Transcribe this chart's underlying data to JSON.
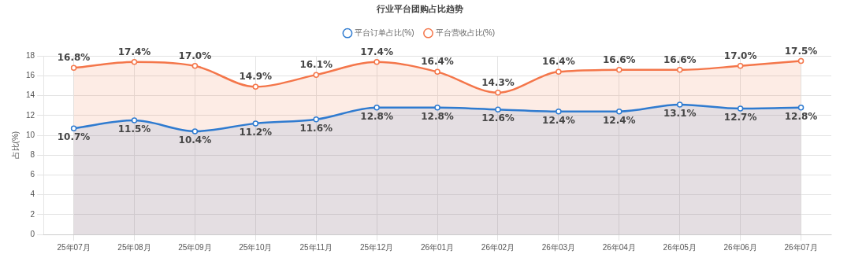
{
  "chart_data": {
    "type": "area",
    "title": "行业平台团购占比趋势",
    "ylabel": "占比(%)",
    "categories": [
      "25年07月",
      "25年08月",
      "25年09月",
      "25年10月",
      "25年11月",
      "25年12月",
      "26年01月",
      "26年02月",
      "26年03月",
      "26年04月",
      "26年05月",
      "26年06月",
      "26年07月"
    ],
    "series": [
      {
        "name": "平台订单占比(%)",
        "color": "#2f7bd0",
        "values": [
          10.7,
          11.5,
          10.4,
          11.2,
          11.6,
          12.8,
          12.8,
          12.6,
          12.4,
          12.4,
          13.1,
          12.7,
          12.8
        ],
        "value_labels": [
          "10.7%",
          "11.5%",
          "10.4%",
          "11.2%",
          "11.6%",
          "12.8%",
          "12.8%",
          "12.6%",
          "12.4%",
          "12.4%",
          "13.1%",
          "12.7%",
          "12.8%"
        ]
      },
      {
        "name": "平台营收占比(%)",
        "color": "#f4764a",
        "values": [
          16.8,
          17.4,
          17.0,
          14.9,
          16.1,
          17.4,
          16.4,
          14.3,
          16.4,
          16.6,
          16.6,
          17.0,
          17.5
        ],
        "value_labels": [
          "16.8%",
          "17.4%",
          "17.0%",
          "14.9%",
          "16.1%",
          "17.4%",
          "16.4%",
          "14.3%",
          "16.4%",
          "16.6%",
          "16.6%",
          "17.0%",
          "17.5%"
        ]
      }
    ],
    "ylim": [
      0,
      18
    ],
    "yticks": [
      0,
      2,
      4,
      6,
      8,
      10,
      12,
      14,
      16,
      18
    ],
    "grid": true,
    "legend": "top",
    "marker": "circle",
    "line_style": "solid"
  }
}
